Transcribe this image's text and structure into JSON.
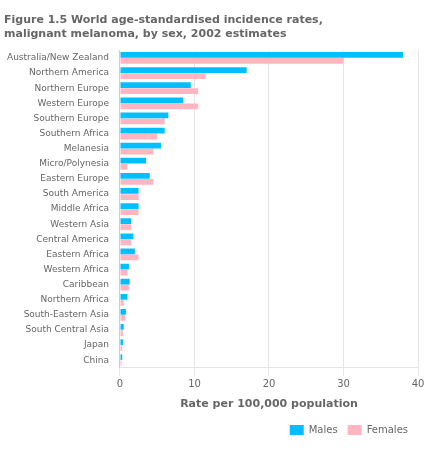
{
  "chart_data": {
    "type": "bar",
    "orientation": "horizontal",
    "title": "Figure 1.5 World age-standardised incidence rates,\nmalignant melanoma, by sex, 2002 estimates",
    "xlabel": "Rate per 100,000 population",
    "categories": [
      "Australia/New Zealand",
      "Northern America",
      "Northern Europe",
      "Western Europe",
      "Southern Europe",
      "Southern Africa",
      "Melanesia",
      "Micro/Polynesia",
      "Eastern Europe",
      "South America",
      "Middle Africa",
      "Western Asia",
      "Central America",
      "Eastern Africa",
      "Western Africa",
      "Caribbean",
      "Northern Africa",
      "South-Eastern Asia",
      "South Central Asia",
      "Japan",
      "China"
    ],
    "series": [
      {
        "name": "Males",
        "color": "#00BFFF",
        "values": [
          38.0,
          17.0,
          9.5,
          8.5,
          6.5,
          6.0,
          5.5,
          3.5,
          4.0,
          2.5,
          2.5,
          1.5,
          1.8,
          2.0,
          1.2,
          1.3,
          1.0,
          0.8,
          0.5,
          0.4,
          0.3
        ]
      },
      {
        "name": "Females",
        "color": "#FFB6C1",
        "values": [
          30.0,
          11.5,
          10.5,
          10.5,
          6.0,
          5.0,
          4.5,
          1.0,
          4.5,
          2.5,
          2.5,
          1.5,
          1.5,
          2.5,
          1.0,
          1.2,
          0.5,
          0.7,
          0.4,
          0.3,
          0.2
        ]
      }
    ],
    "xlim": [
      0,
      40
    ],
    "xticks": [
      0,
      10,
      20,
      30,
      40
    ],
    "grid": true,
    "legend": "lower right"
  }
}
